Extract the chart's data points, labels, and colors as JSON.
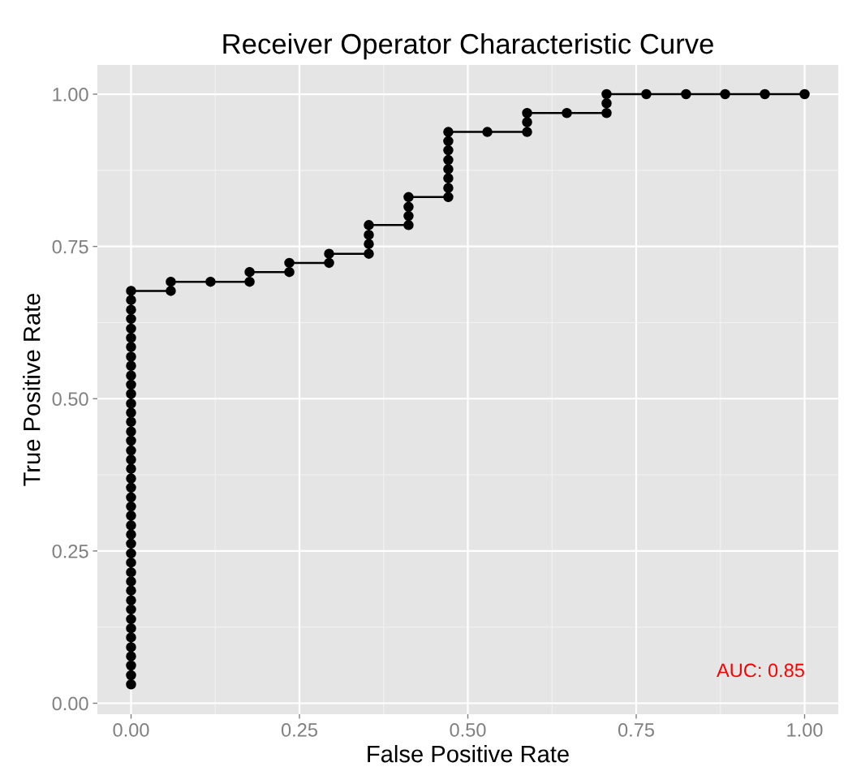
{
  "chart_data": {
    "type": "line",
    "title": "Receiver Operator Characteristic Curve",
    "xlabel": "False Positive Rate",
    "ylabel": "True Positive Rate",
    "series": [
      {
        "color": "#000000",
        "x": [
          0,
          0,
          0,
          0,
          0,
          0,
          0,
          0,
          0,
          0,
          0,
          0,
          0,
          0,
          0,
          0,
          0,
          0,
          0,
          0,
          0,
          0,
          0,
          0,
          0,
          0,
          0,
          0,
          0,
          0,
          0,
          0,
          0,
          0,
          0,
          0,
          0,
          0,
          0,
          0,
          0,
          0,
          0,
          0.059,
          0.059,
          0.118,
          0.176,
          0.176,
          0.235,
          0.235,
          0.294,
          0.294,
          0.353,
          0.353,
          0.353,
          0.353,
          0.412,
          0.412,
          0.412,
          0.412,
          0.471,
          0.471,
          0.471,
          0.471,
          0.471,
          0.471,
          0.471,
          0.471,
          0.529,
          0.588,
          0.588,
          0.588,
          0.647,
          0.706,
          0.706,
          0.706,
          0.765,
          0.824,
          0.882,
          0.941,
          1.0
        ],
        "values": [
          0.031,
          0.046,
          0.062,
          0.077,
          0.092,
          0.108,
          0.123,
          0.138,
          0.154,
          0.169,
          0.185,
          0.2,
          0.215,
          0.231,
          0.246,
          0.262,
          0.277,
          0.292,
          0.308,
          0.323,
          0.338,
          0.354,
          0.369,
          0.385,
          0.4,
          0.415,
          0.431,
          0.446,
          0.462,
          0.477,
          0.492,
          0.508,
          0.523,
          0.538,
          0.554,
          0.569,
          0.585,
          0.6,
          0.615,
          0.631,
          0.646,
          0.662,
          0.677,
          0.677,
          0.692,
          0.692,
          0.692,
          0.708,
          0.708,
          0.723,
          0.723,
          0.738,
          0.738,
          0.754,
          0.769,
          0.785,
          0.785,
          0.8,
          0.815,
          0.831,
          0.831,
          0.846,
          0.862,
          0.877,
          0.892,
          0.908,
          0.923,
          0.938,
          0.938,
          0.938,
          0.954,
          0.969,
          0.969,
          0.969,
          0.985,
          1.0,
          1.0,
          1.0,
          1.0,
          1.0,
          1.0
        ]
      }
    ],
    "xlim": [
      -0.05,
      1.05
    ],
    "ylim": [
      -0.018,
      1.048
    ],
    "xticks": [
      {
        "value": 0,
        "label": "0.00"
      },
      {
        "value": 0.25,
        "label": "0.25"
      },
      {
        "value": 0.5,
        "label": "0.50"
      },
      {
        "value": 0.75,
        "label": "0.75"
      },
      {
        "value": 1,
        "label": "1.00"
      }
    ],
    "yticks": [
      {
        "value": 0,
        "label": "0.00"
      },
      {
        "value": 0.25,
        "label": "0.25"
      },
      {
        "value": 0.5,
        "label": "0.50"
      },
      {
        "value": 0.75,
        "label": "0.75"
      },
      {
        "value": 1,
        "label": "1.00"
      }
    ],
    "grid": true,
    "marker": "circle",
    "line_style": "solid",
    "annotations": [
      "AUC: 0.85"
    ]
  }
}
